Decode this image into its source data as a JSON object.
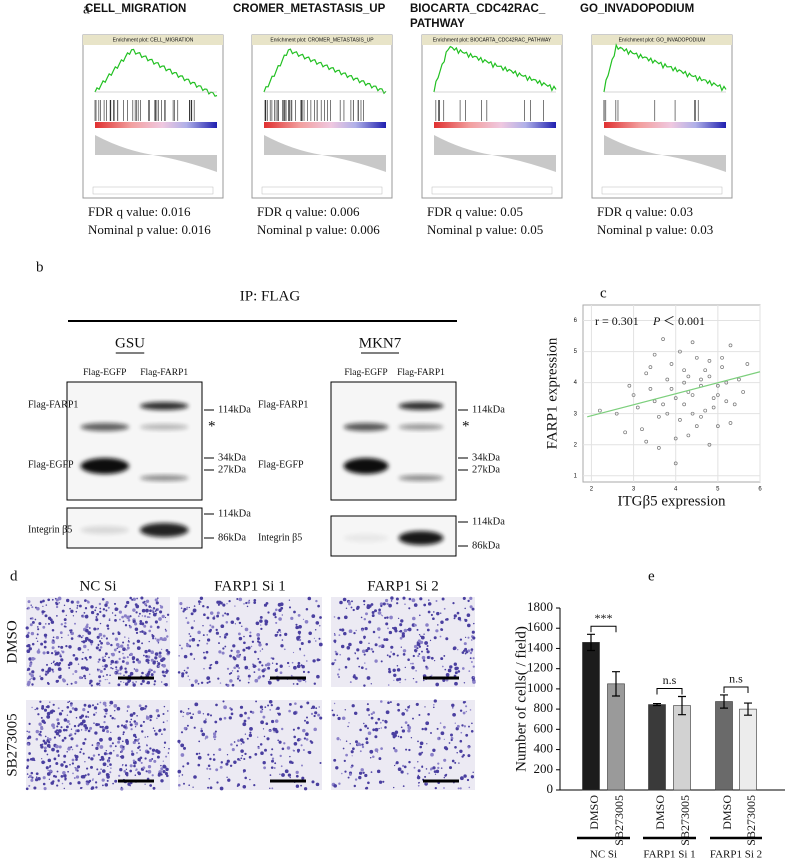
{
  "panels": {
    "a": {
      "label": "a",
      "plots": [
        {
          "title": [
            "CELL_MIGRATION"
          ],
          "plot_title": "Enrichment plot: CELL_MIGRATION",
          "fdr": "FDR q value: 0.016",
          "nominal": "Nominal p value: 0.016"
        },
        {
          "title": [
            "CROMER_METASTASIS_UP"
          ],
          "plot_title": "Enrichment plot: CROMER_METASTASIS_UP",
          "fdr": "FDR q value: 0.006",
          "nominal": "Nominal p value: 0.006"
        },
        {
          "title": [
            "BIOCARTA_CDC42RAC_",
            "PATHWAY"
          ],
          "plot_title": "Enrichment plot: BIOCARTA_CDC42RAC_PATHWAY",
          "fdr": "FDR q value: 0.05",
          "nominal": "Nominal p value: 0.05"
        },
        {
          "title": [
            "GO_INVADOPODIUM"
          ],
          "plot_title": "Enrichment plot: GO_INVADOPODIUM",
          "fdr": "FDR q value: 0.03",
          "nominal": "Nominal p value: 0.03"
        }
      ]
    },
    "b": {
      "label": "b",
      "title": "IP: FLAG",
      "blots": [
        {
          "cell_line": "GSU",
          "lanes": [
            "Flag-EGFP",
            "Flag-FARP1"
          ],
          "row_labels": [
            "Flag-FARP1",
            "Flag-EGFP",
            "Integrin β5"
          ],
          "markers": [
            "114kDa",
            "*",
            "34kDa",
            "27kDa",
            "114kDa",
            "86kDa"
          ]
        },
        {
          "cell_line": "MKN7",
          "lanes": [
            "Flag-EGFP",
            "Flag-FARP1"
          ],
          "row_labels": [
            "Flag-FARP1",
            "Flag-EGFP",
            "Integrin β5"
          ],
          "markers": [
            "114kDa",
            "*",
            "34kDa",
            "27kDa",
            "114kDa",
            "86kDa"
          ]
        }
      ]
    },
    "c": {
      "label": "c"
    },
    "d": {
      "label": "d",
      "columns": [
        "NC Si",
        "FARP1 Si 1",
        "FARP1 Si 2"
      ],
      "rows": [
        "DMSO",
        "SB273005"
      ]
    },
    "e": {
      "label": "e"
    }
  },
  "chart_data": [
    {
      "type": "scatter",
      "r_text": "r = 0.301",
      "p_symbol": "P",
      "p_text": "＜ 0.001",
      "xlabel": "ITGβ5 expression",
      "ylabel": "FARP1 expression",
      "xlim": [
        1.8,
        6.0
      ],
      "ylim": [
        0.8,
        6.5
      ],
      "xticks": [
        2,
        3,
        4,
        5,
        6
      ],
      "yticks": [
        1,
        2,
        3,
        4,
        5,
        6
      ],
      "grid": true,
      "color": "#777777",
      "x": [
        3.1,
        3.4,
        3.6,
        3.8,
        4.0,
        4.2,
        4.4,
        4.6,
        4.8,
        5.0,
        5.2,
        5.4,
        3.2,
        3.5,
        3.9,
        4.1,
        4.3,
        4.5,
        4.7,
        4.9,
        5.1,
        5.3,
        3.0,
        3.3,
        3.7,
        4.0,
        4.2,
        4.4,
        4.6,
        4.8,
        5.0,
        5.5,
        2.6,
        2.8,
        3.5,
        3.9,
        4.3,
        4.7,
        5.2,
        5.7,
        3.6,
        4.1,
        4.5,
        4.9,
        5.3,
        2.2,
        2.9,
        3.3,
        3.8,
        4.4,
        4.8,
        5.1,
        5.6,
        4.0,
        4.6,
        3.4,
        4.2,
        5.0,
        3.7,
        4.3
      ],
      "y": [
        3.2,
        3.8,
        2.9,
        4.1,
        3.5,
        4.4,
        3.0,
        3.9,
        4.2,
        3.6,
        4.0,
        3.3,
        2.5,
        3.4,
        4.6,
        2.8,
        3.7,
        4.8,
        3.1,
        3.5,
        4.5,
        2.7,
        3.6,
        4.3,
        3.3,
        2.2,
        4.0,
        3.6,
        2.9,
        4.7,
        3.9,
        4.1,
        3.0,
        2.4,
        4.9,
        3.8,
        2.3,
        4.4,
        3.4,
        4.6,
        1.9,
        5.0,
        2.6,
        3.2,
        5.2,
        3.1,
        3.9,
        2.1,
        3.0,
        5.3,
        2.0,
        4.8,
        3.7,
        1.4,
        4.1,
        4.5,
        3.3,
        2.6,
        5.4,
        4.2
      ],
      "trend": {
        "x": [
          1.9,
          6.0
        ],
        "y": [
          2.9,
          4.35
        ],
        "color": "#7ccf7c"
      }
    },
    {
      "type": "bar",
      "ylabel": "Number of cells( / field)",
      "categories": [
        "DMSO",
        "SB273005",
        "DMSO",
        "SB273005",
        "DMSO",
        "SB273005"
      ],
      "groups": [
        "NC Si",
        "FARP1 Si 1",
        "FARP1 Si 2"
      ],
      "values": [
        1460,
        1050,
        845,
        835,
        875,
        800
      ],
      "errors": [
        80,
        120,
        10,
        90,
        65,
        60
      ],
      "colors": [
        "#1c1c1c",
        "#9a9a9a",
        "#3a3a3a",
        "#d2d2d2",
        "#6a6a6a",
        "#ececec"
      ],
      "significance": [
        "***",
        "n.s",
        "n.s"
      ],
      "ylim": [
        0,
        1800
      ],
      "yticks": [
        0,
        200,
        400,
        600,
        800,
        1000,
        1200,
        1400,
        1600,
        1800
      ]
    }
  ]
}
